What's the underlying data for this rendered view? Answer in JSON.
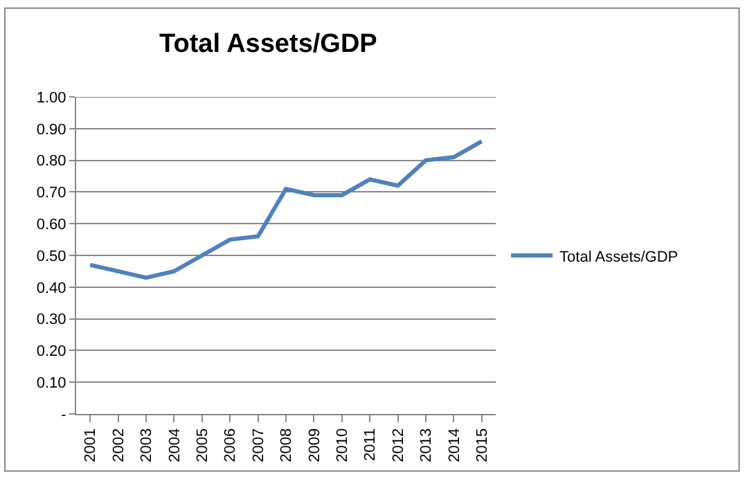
{
  "chart_data": {
    "type": "line",
    "title": "Total Assets/GDP",
    "categories": [
      "2001",
      "2002",
      "2003",
      "2004",
      "2005",
      "2006",
      "2007",
      "2008",
      "2009",
      "2010",
      "2011",
      "2012",
      "2013",
      "2014",
      "2015"
    ],
    "series": [
      {
        "name": "Total Assets/GDP",
        "color": "#4f81bd",
        "values": [
          0.47,
          0.45,
          0.43,
          0.45,
          0.5,
          0.55,
          0.56,
          0.71,
          0.69,
          0.69,
          0.74,
          0.72,
          0.8,
          0.81,
          0.86
        ]
      }
    ],
    "ylim": [
      0,
      1
    ],
    "yticks": [
      {
        "value": 0,
        "label": "-"
      },
      {
        "value": 0.1,
        "label": "0.10"
      },
      {
        "value": 0.2,
        "label": "0.20"
      },
      {
        "value": 0.3,
        "label": "0.30"
      },
      {
        "value": 0.4,
        "label": "0.40"
      },
      {
        "value": 0.5,
        "label": "0.50"
      },
      {
        "value": 0.6,
        "label": "0.60"
      },
      {
        "value": 0.7,
        "label": "0.70"
      },
      {
        "value": 0.8,
        "label": "0.80"
      },
      {
        "value": 0.9,
        "label": "0.90"
      },
      {
        "value": 1.0,
        "label": "1.00"
      }
    ],
    "grid": "y",
    "legend": "right",
    "marker": "none",
    "line_style": "solid"
  }
}
